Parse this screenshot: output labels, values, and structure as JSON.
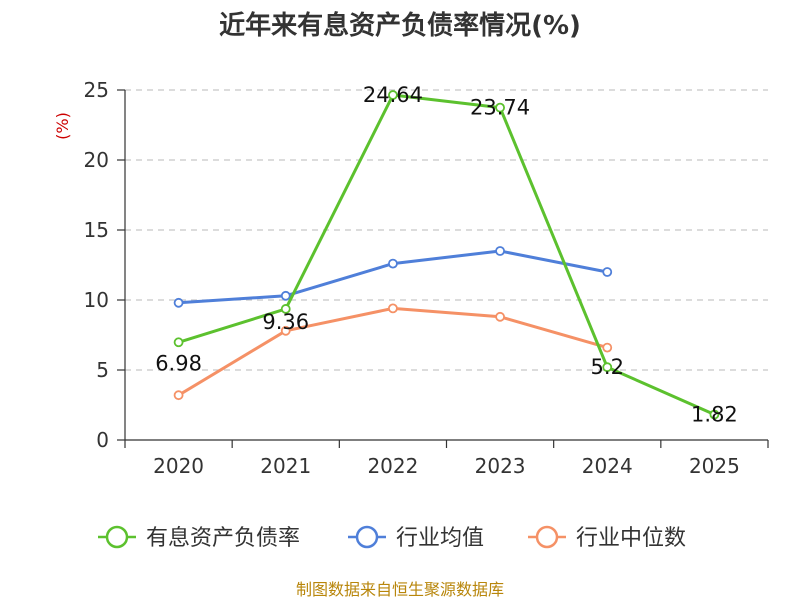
{
  "chart_data": {
    "type": "line",
    "title": "近年来有息资产负债率情况(%)",
    "ylabel": "(%)",
    "xlabel": "",
    "categories": [
      "2020",
      "2021",
      "2022",
      "2023",
      "2024",
      "2025"
    ],
    "ylim": [
      0,
      25
    ],
    "yticks": [
      0,
      5,
      10,
      15,
      20,
      25
    ],
    "grid": true,
    "legend_position": "bottom",
    "series": [
      {
        "name": "有息资产负债率",
        "color": "#5cc12e",
        "values": [
          6.98,
          9.36,
          24.64,
          23.74,
          5.2,
          1.82
        ],
        "labels": [
          "6.98",
          "9.36",
          "24.64",
          "23.74",
          "5.2",
          "1.82"
        ]
      },
      {
        "name": "行业均值",
        "color": "#4f7fd9",
        "values": [
          9.8,
          10.3,
          12.6,
          13.5,
          12.0,
          null
        ]
      },
      {
        "name": "行业中位数",
        "color": "#f59166",
        "values": [
          3.2,
          7.8,
          9.4,
          8.8,
          6.6,
          null
        ]
      }
    ]
  },
  "footer": {
    "source": "制图数据来自恒生聚源数据库"
  }
}
